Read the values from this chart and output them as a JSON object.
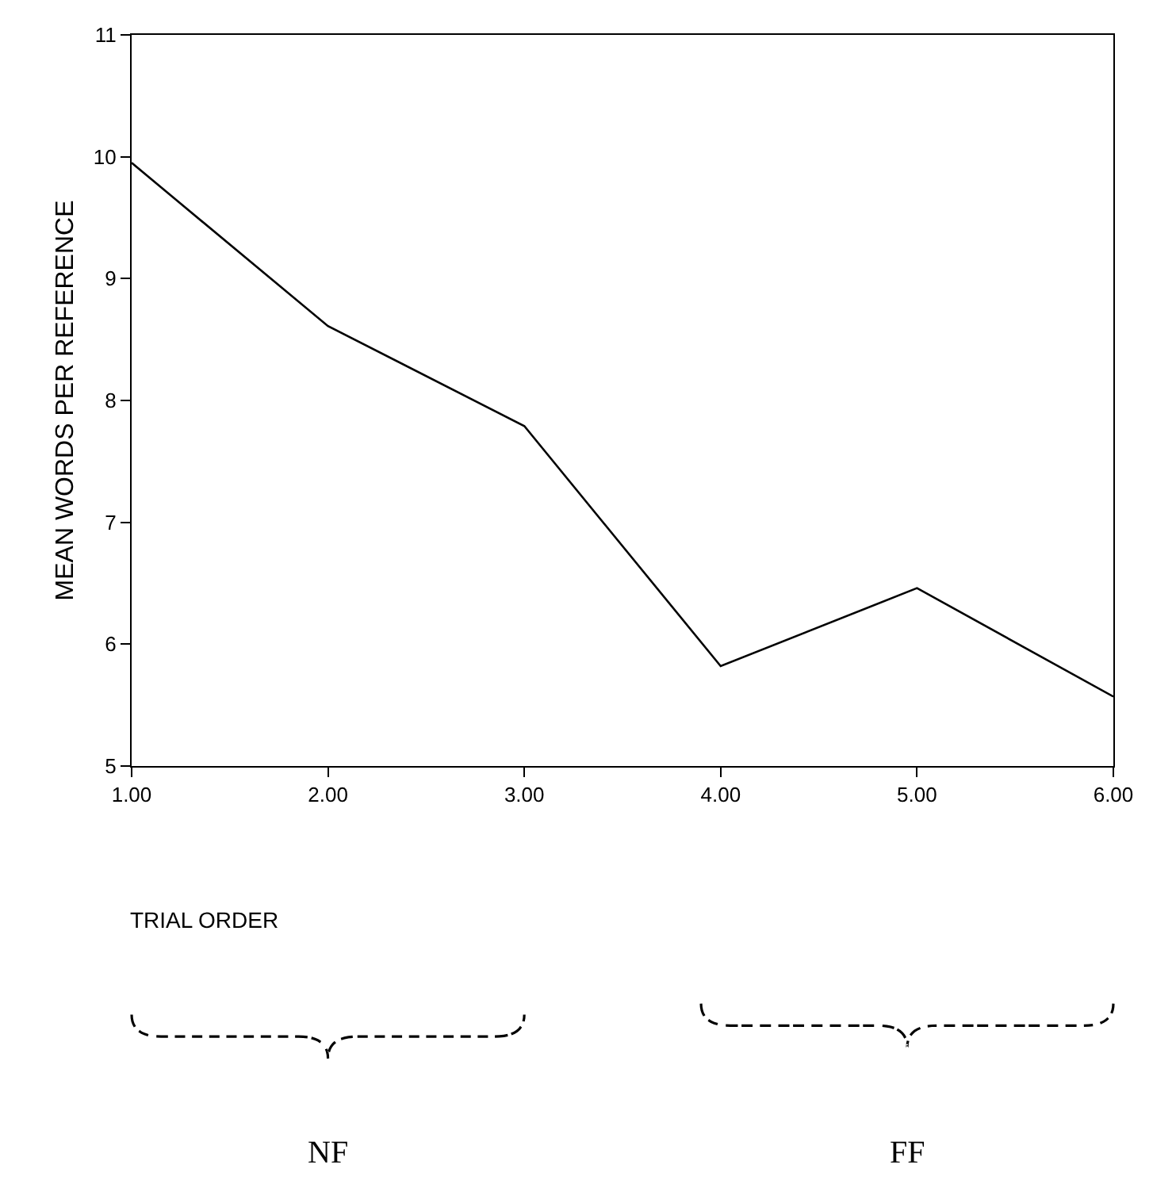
{
  "chart_data": {
    "type": "line",
    "xlabel": "TRIAL ORDER",
    "ylabel": "MEAN WORDS PER REFERENCE",
    "x": [
      1,
      2,
      3,
      4,
      5,
      6
    ],
    "series": [
      {
        "color": "#000000",
        "values": [
          9.95,
          8.61,
          7.79,
          5.82,
          6.46,
          5.57
        ]
      }
    ],
    "xlim": [
      1,
      6
    ],
    "ylim": [
      5,
      11
    ],
    "xticks": [
      {
        "value": 1,
        "label": "1.00"
      },
      {
        "value": 2,
        "label": "2.00"
      },
      {
        "value": 3,
        "label": "3.00"
      },
      {
        "value": 4,
        "label": "4.00"
      },
      {
        "value": 5,
        "label": "5.00"
      },
      {
        "value": 6,
        "label": "6.00"
      }
    ],
    "yticks": [
      5,
      6,
      7,
      8,
      9,
      10,
      11
    ],
    "annotations": [
      "NF",
      "FF"
    ],
    "marker": "none",
    "line_style": "solid"
  }
}
